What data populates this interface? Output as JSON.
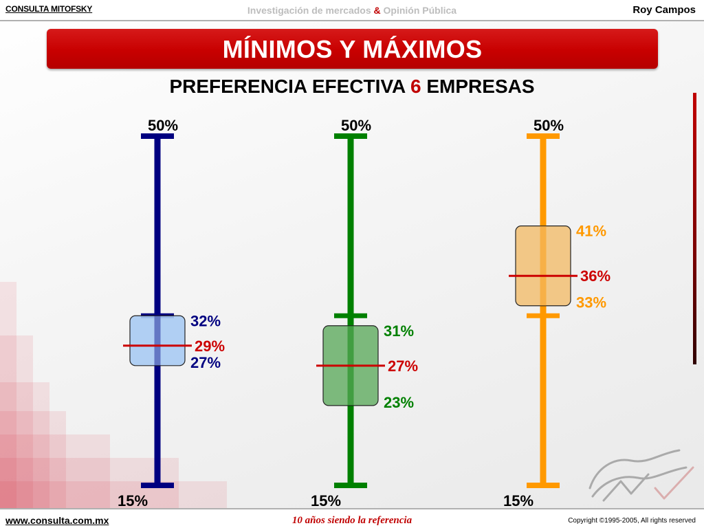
{
  "header": {
    "brand": "CONSULTA MITOFSKY",
    "tagline_part1": "Investigación de mercados",
    "tagline_amp": "&",
    "tagline_part2": "Opinión Pública",
    "author": "Roy Campos"
  },
  "banner": {
    "title": "MÍNIMOS Y MÁXIMOS"
  },
  "subtitle": {
    "prefix": "PREFERENCIA EFECTIVA",
    "number": "6",
    "suffix": "EMPRESAS"
  },
  "footer": {
    "url": "www.consulta.com.mx",
    "slogan": "10 años siendo la referencia",
    "copyright": "Copyright ©1995-2005, All rights reserved"
  },
  "colors": {
    "brand_red": "#c00000",
    "series_1": "#000080",
    "series_2": "#008000",
    "series_3": "#ff9900",
    "median_line": "#cc0000"
  },
  "chart_data": {
    "type": "boxplot",
    "title": "MÍNIMOS Y MÁXIMOS",
    "subtitle": "PREFERENCIA EFECTIVA 6 EMPRESAS",
    "ylim": [
      15,
      50
    ],
    "grid": false,
    "series": [
      {
        "color": "#000080",
        "box_fill": "#a9cbf3",
        "min": 15,
        "max": 50,
        "box_low": 27,
        "box_high": 32,
        "median": 29,
        "whisker_cap_inner": 32,
        "labels": {
          "max": "50%",
          "min": "15%",
          "high": "32%",
          "median": "29%",
          "low": "27%"
        }
      },
      {
        "color": "#008000",
        "box_fill": "#6fb36f",
        "min": 15,
        "max": 50,
        "box_low": 23,
        "box_high": 31,
        "median": 27,
        "whisker_cap_inner": 32,
        "labels": {
          "max": "50%",
          "min": "15%",
          "high": "31%",
          "median": "27%",
          "low": "23%"
        }
      },
      {
        "color": "#ff9900",
        "box_fill": "#f2c27a",
        "min": 15,
        "max": 50,
        "box_low": 33,
        "box_high": 41,
        "median": 36,
        "whisker_cap_inner": 32,
        "labels": {
          "max": "50%",
          "min": "15%",
          "high": "41%",
          "median": "36%",
          "low": "33%"
        }
      }
    ]
  }
}
